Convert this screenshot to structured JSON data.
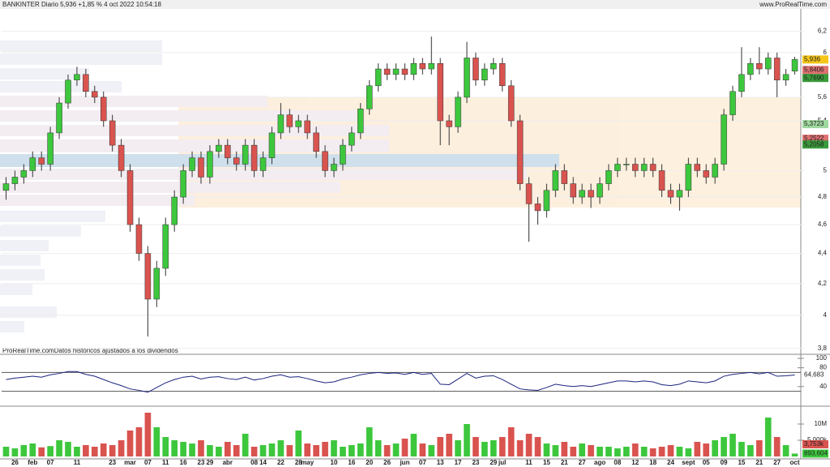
{
  "header": {
    "title": "BANKINTER Diario 5,936 +1,85 % 4 oct 2022 10:54:18",
    "site": "www.ProRealTime.com"
  },
  "chart_data": [
    {
      "type": "candlestick",
      "annotation": "ProRealTime.comDatos históricos ajustados a los dividendos",
      "categories": [
        null,
        "26",
        null,
        "feb",
        null,
        "07",
        null,
        null,
        "11",
        null,
        null,
        null,
        "23",
        null,
        "mar",
        null,
        "07",
        null,
        "11",
        null,
        "16",
        null,
        "23",
        "29",
        null,
        "abr",
        null,
        null,
        "08",
        "14",
        null,
        "22",
        null,
        "28",
        "may",
        null,
        null,
        "10",
        null,
        "16",
        null,
        "20",
        null,
        "26",
        null,
        "jun",
        null,
        "07",
        null,
        "13",
        null,
        "17",
        null,
        "23",
        null,
        "29",
        "jul",
        null,
        null,
        "11",
        null,
        "15",
        null,
        "21",
        null,
        "27",
        null,
        "ago",
        null,
        "08",
        null,
        "12",
        null,
        "18",
        null,
        "24",
        null,
        "sept",
        null,
        "05",
        null,
        "09",
        null,
        "15",
        null,
        "21",
        null,
        "27",
        null,
        "oct"
      ],
      "open": [
        4.85,
        4.9,
        4.95,
        5.0,
        5.1,
        5.05,
        5.3,
        5.55,
        5.75,
        5.8,
        5.65,
        5.6,
        5.4,
        5.2,
        5.0,
        4.6,
        4.4,
        4.1,
        4.3,
        4.6,
        4.8,
        5.0,
        5.1,
        4.95,
        5.15,
        5.2,
        5.1,
        5.05,
        5.2,
        5.0,
        5.1,
        5.3,
        5.45,
        5.35,
        5.4,
        5.3,
        5.15,
        5.0,
        5.05,
        5.2,
        5.3,
        5.5,
        5.7,
        5.85,
        5.8,
        5.85,
        5.8,
        5.9,
        5.85,
        5.9,
        5.4,
        5.35,
        5.6,
        5.95,
        5.75,
        5.85,
        5.9,
        5.7,
        5.4,
        4.9,
        4.75,
        4.7,
        4.85,
        5.0,
        4.9,
        4.8,
        4.85,
        4.8,
        4.9,
        5.0,
        5.05,
        5.05,
        5.0,
        5.05,
        5.0,
        4.85,
        4.8,
        4.85,
        5.05,
        5.0,
        4.95,
        5.05,
        5.45,
        5.65,
        5.8,
        5.9,
        5.85,
        5.95,
        5.75,
        5.83
      ],
      "high": [
        4.95,
        5.0,
        5.05,
        5.15,
        5.15,
        5.35,
        5.6,
        5.8,
        5.87,
        5.85,
        5.7,
        5.65,
        5.45,
        5.25,
        5.05,
        4.65,
        4.45,
        4.35,
        4.65,
        4.85,
        5.05,
        5.15,
        5.15,
        5.2,
        5.25,
        5.25,
        5.15,
        5.25,
        5.25,
        5.15,
        5.35,
        5.55,
        5.5,
        5.45,
        5.45,
        5.35,
        5.2,
        5.1,
        5.25,
        5.35,
        5.55,
        5.75,
        5.9,
        5.9,
        5.9,
        5.9,
        5.95,
        5.95,
        6.15,
        5.95,
        5.45,
        5.65,
        6.1,
        6.0,
        5.9,
        5.95,
        5.95,
        5.75,
        5.45,
        4.95,
        4.8,
        4.9,
        5.05,
        5.05,
        4.95,
        4.9,
        4.9,
        4.95,
        5.05,
        5.1,
        5.1,
        5.1,
        5.1,
        5.1,
        5.05,
        4.9,
        4.9,
        5.1,
        5.1,
        5.05,
        5.1,
        5.5,
        5.7,
        6.05,
        5.95,
        6.05,
        6.0,
        6.0,
        5.85,
        5.96
      ],
      "low": [
        4.78,
        4.85,
        4.9,
        4.95,
        5.0,
        5.0,
        5.25,
        5.5,
        5.7,
        5.6,
        5.55,
        5.35,
        5.15,
        4.95,
        4.55,
        4.35,
        3.87,
        4.05,
        4.25,
        4.55,
        4.75,
        4.95,
        4.9,
        4.9,
        5.1,
        5.05,
        5.0,
        5.0,
        4.95,
        4.95,
        5.05,
        5.25,
        5.3,
        5.3,
        5.25,
        5.1,
        4.95,
        4.95,
        5.0,
        5.15,
        5.25,
        5.45,
        5.65,
        5.75,
        5.75,
        5.75,
        5.75,
        5.8,
        5.8,
        5.2,
        5.2,
        5.3,
        5.55,
        5.7,
        5.7,
        5.8,
        5.65,
        5.35,
        4.85,
        4.48,
        4.6,
        4.65,
        4.8,
        4.85,
        4.75,
        4.75,
        4.72,
        4.75,
        4.85,
        4.95,
        5.0,
        4.95,
        4.95,
        4.95,
        4.8,
        4.75,
        4.7,
        4.8,
        4.95,
        4.9,
        4.9,
        5.0,
        5.4,
        5.6,
        5.75,
        5.8,
        5.8,
        5.6,
        5.7,
        5.8
      ],
      "close": [
        4.9,
        4.95,
        5.0,
        5.1,
        5.05,
        5.3,
        5.55,
        5.75,
        5.8,
        5.65,
        5.6,
        5.4,
        5.2,
        5.0,
        4.6,
        4.4,
        4.1,
        4.3,
        4.6,
        4.8,
        5.0,
        5.1,
        4.95,
        5.15,
        5.2,
        5.1,
        5.05,
        5.2,
        5.0,
        5.1,
        5.3,
        5.45,
        5.35,
        5.4,
        5.3,
        5.15,
        5.0,
        5.05,
        5.2,
        5.3,
        5.5,
        5.7,
        5.85,
        5.8,
        5.85,
        5.8,
        5.9,
        5.85,
        5.9,
        5.4,
        5.35,
        5.6,
        5.95,
        5.75,
        5.85,
        5.9,
        5.7,
        5.4,
        4.9,
        4.75,
        4.7,
        4.85,
        5.0,
        4.9,
        4.8,
        4.85,
        4.8,
        4.9,
        5.0,
        5.05,
        5.05,
        5.0,
        5.05,
        5.0,
        4.85,
        4.8,
        4.85,
        5.05,
        5.0,
        4.95,
        5.05,
        5.45,
        5.65,
        5.8,
        5.9,
        5.85,
        5.95,
        5.75,
        5.8,
        5.936
      ],
      "up_color": "#3dc73d",
      "down_color": "#d9534f",
      "ylim": [
        3.77,
        6.41
      ],
      "log_scale": true,
      "grid": true,
      "yticks": [
        {
          "value": 3.8,
          "label": "3,8"
        },
        4,
        {
          "value": 4.2,
          "label": "4,2"
        },
        {
          "value": 4.4,
          "label": "4,4"
        },
        {
          "value": 4.6,
          "label": "4,6"
        },
        {
          "value": 4.8,
          "label": "4,8"
        },
        5,
        {
          "value": 5.4,
          "label": "5,4"
        },
        {
          "value": 5.6,
          "label": "5,6"
        },
        6,
        {
          "value": 6.2,
          "label": "6,2"
        }
      ],
      "price_labels": [
        {
          "value": 5.936,
          "label": "5,936",
          "color": "#f5c518"
        },
        {
          "value": 5.8406,
          "label": "5,8406",
          "color": "#e07070"
        },
        {
          "value": 5.769,
          "label": "5,7690",
          "color": "#3a9a3a"
        },
        {
          "value": 5.3723,
          "label": "5,3723",
          "color": "#9fd89f"
        },
        {
          "value": 5.2522,
          "label": "5,2522",
          "color": "#e07070"
        },
        {
          "value": 5.2058,
          "label": "5,2058",
          "color": "#3a9a3a"
        }
      ]
    },
    {
      "type": "line",
      "values": [
        55,
        58,
        60,
        62,
        60,
        65,
        68,
        72,
        72,
        66,
        62,
        55,
        48,
        42,
        35,
        32,
        28,
        38,
        48,
        55,
        60,
        62,
        56,
        60,
        61,
        57,
        55,
        60,
        54,
        57,
        62,
        65,
        60,
        61,
        57,
        52,
        48,
        50,
        56,
        60,
        65,
        68,
        70,
        68,
        69,
        66,
        70,
        66,
        68,
        45,
        44,
        56,
        68,
        58,
        62,
        63,
        55,
        45,
        35,
        33,
        32,
        38,
        45,
        42,
        40,
        42,
        40,
        44,
        48,
        52,
        52,
        50,
        52,
        50,
        44,
        42,
        45,
        52,
        50,
        48,
        52,
        62,
        66,
        68,
        70,
        67,
        70,
        62,
        63,
        64.683
      ],
      "color": "#1a237e",
      "ylim": [
        0,
        100
      ],
      "yticks": [
        100,
        80,
        40
      ],
      "levels": [
        70,
        30
      ],
      "last_label": {
        "value": 64.683,
        "label": "64,683"
      }
    },
    {
      "type": "bar",
      "values": [
        3,
        2.5,
        3.5,
        4,
        2.8,
        3.2,
        5,
        4.5,
        3,
        3.5,
        3,
        4,
        3.5,
        5,
        8,
        9,
        13.5,
        9,
        6,
        5,
        4.5,
        4,
        5,
        3.5,
        3,
        4.5,
        3.5,
        7,
        3,
        3.5,
        4,
        5,
        3.5,
        8,
        4,
        3.5,
        4.5,
        5,
        3,
        3.5,
        4,
        9,
        5,
        3.5,
        4,
        5.5,
        7,
        4,
        3.5,
        6,
        7,
        5,
        10,
        6,
        4.5,
        5,
        6,
        9,
        5,
        7,
        6,
        4,
        3.5,
        4.5,
        3,
        4,
        3.5,
        3,
        3,
        2.5,
        3,
        4,
        3,
        2.5,
        3,
        3.5,
        3,
        2.5,
        4.5,
        4,
        5,
        6,
        7,
        4.5,
        3.5,
        5,
        12,
        6,
        3.5,
        0.893604
      ],
      "ylim": [
        0,
        15
      ],
      "yticks": [
        {
          "value": 10,
          "label": "10M"
        },
        {
          "value": 5,
          "label": "5.000k"
        }
      ],
      "ma_label": {
        "value": 3.753,
        "label": "3,753k",
        "color": "#d9534f"
      },
      "last_label": {
        "value": 0.893604,
        "label": "893,604",
        "color": "#3dc73d"
      }
    }
  ]
}
